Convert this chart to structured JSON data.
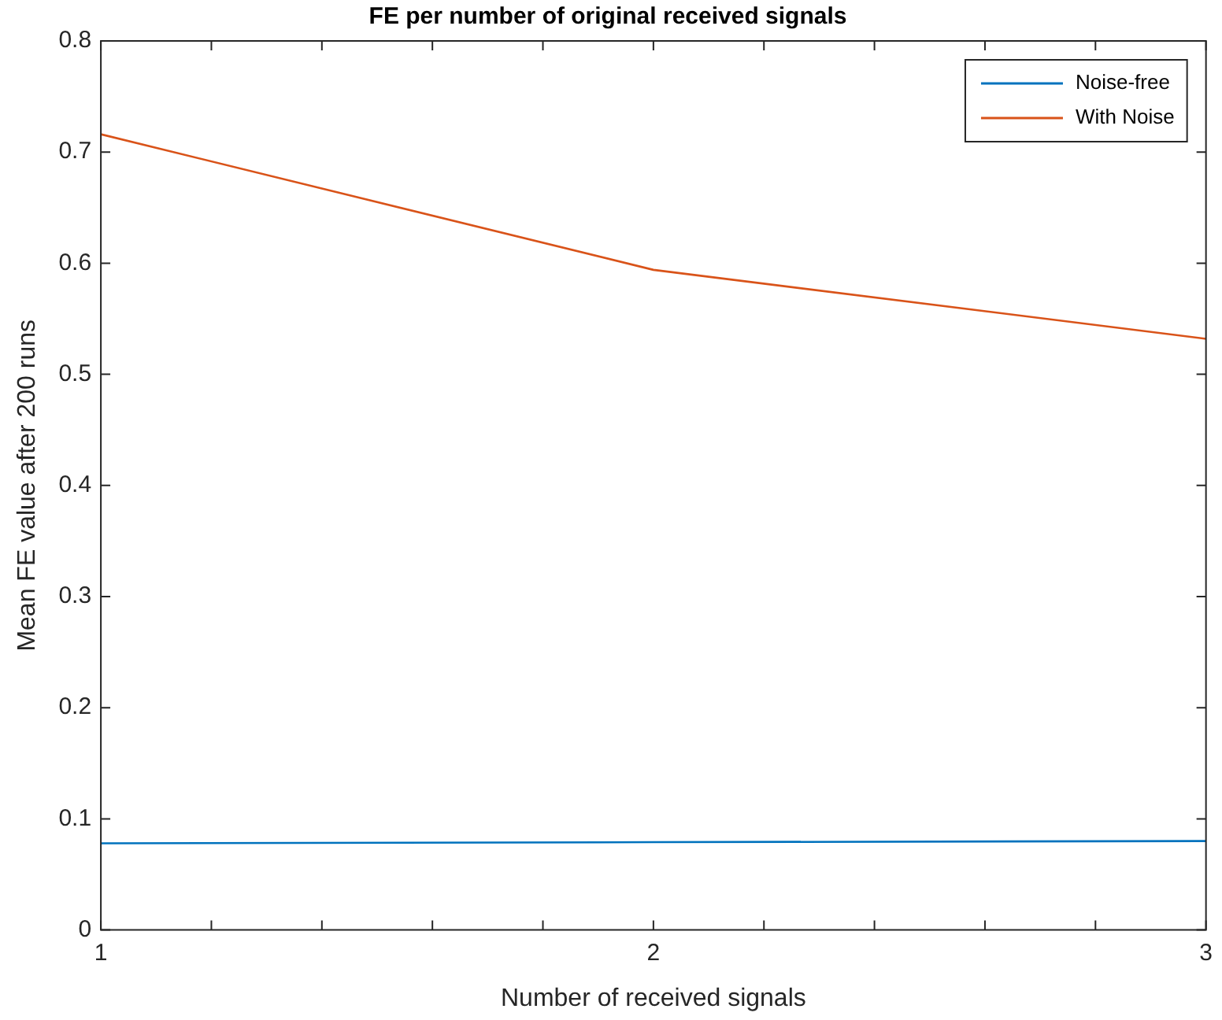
{
  "chart_data": {
    "type": "line",
    "title": "FE per number of original received signals",
    "xlabel": "Number of received signals",
    "ylabel": "Mean FE value after 200 runs",
    "x": [
      1,
      2,
      3
    ],
    "series": [
      {
        "name": "Noise-free",
        "color": "#0072bd",
        "values": [
          0.078,
          0.079,
          0.08
        ]
      },
      {
        "name": "With Noise",
        "color": "#d95319",
        "values": [
          0.716,
          0.594,
          0.532
        ]
      }
    ],
    "xlim": [
      1,
      3
    ],
    "xticks": [
      1,
      {
        "value": 1.2,
        "label": null
      },
      {
        "value": 1.4,
        "label": null
      },
      {
        "value": 1.6,
        "label": null
      },
      {
        "value": 1.8,
        "label": null
      },
      2,
      {
        "value": 2.2,
        "label": null
      },
      {
        "value": 2.4,
        "label": null
      },
      {
        "value": 2.6,
        "label": null
      },
      {
        "value": 2.8,
        "label": null
      },
      3
    ],
    "ylim": [
      0,
      0.8
    ],
    "yticks": [
      0,
      0.1,
      0.2,
      0.3,
      0.4,
      0.5,
      0.6,
      0.7,
      0.8
    ],
    "grid": false,
    "legend": "top right",
    "marker": "none",
    "line_style": "solid"
  }
}
